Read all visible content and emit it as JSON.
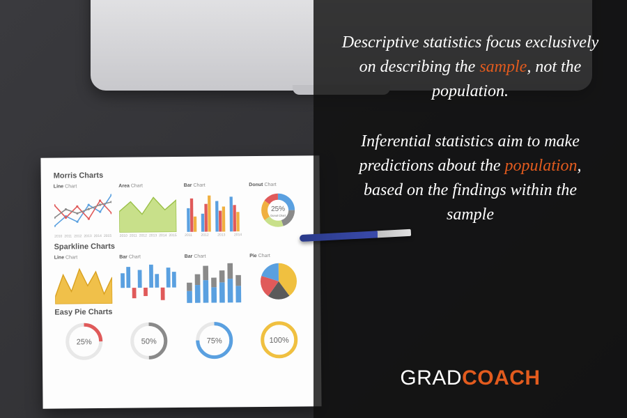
{
  "background_color": "#2a2a2d",
  "laptop": {
    "body_color": "#d8d8dc",
    "hinge_color": "#1a1a1c"
  },
  "pen": {
    "barrel_color": "#2a3a8a",
    "tip_color": "#d0d0d0"
  },
  "paper": {
    "section1_title": "Morris Charts",
    "section2_title": "Sparkline Charts",
    "section3_title": "Easy Pie Charts",
    "morris": {
      "line": {
        "label_strong": "Line",
        "label_rest": "Chart",
        "years": [
          "2010",
          "2011",
          "2012",
          "2013",
          "2014",
          "2015"
        ],
        "series": [
          {
            "color": "#5aa0e0",
            "points": [
              10,
              24,
              16,
              40,
              30,
              54
            ]
          },
          {
            "color": "#e05a5a",
            "points": [
              40,
              22,
              38,
              20,
              46,
              28
            ]
          },
          {
            "color": "#8a8a8a",
            "points": [
              22,
              34,
              28,
              34,
              40,
              44
            ]
          }
        ],
        "xlim": [
          0,
          5
        ],
        "ylim": [
          0,
          60
        ]
      },
      "area": {
        "label_strong": "Area",
        "label_rest": "Chart",
        "years": [
          "2010",
          "2011",
          "2012",
          "2013",
          "2014",
          "2015"
        ],
        "fill_color": "#c8e08a",
        "stroke_color": "#9ac048",
        "points": [
          30,
          44,
          26,
          50,
          32,
          46
        ],
        "xlim": [
          0,
          5
        ],
        "ylim": [
          0,
          60
        ]
      },
      "bar": {
        "label_strong": "Bar",
        "label_rest": "Chart",
        "years": [
          "2011",
          "2012",
          "2013",
          "2014"
        ],
        "colors": [
          "#5aa0e0",
          "#e05a5a",
          "#f0b040"
        ],
        "groups": [
          [
            34,
            48,
            22
          ],
          [
            26,
            40,
            52
          ],
          [
            44,
            30,
            36
          ],
          [
            50,
            38,
            28
          ]
        ],
        "ylim": [
          0,
          60
        ]
      },
      "donut": {
        "label_strong": "Donut",
        "label_rest": "Chart",
        "center_value": "25",
        "center_sub": "Donut Chart",
        "slices": [
          {
            "color": "#5aa0e0",
            "value": 25
          },
          {
            "color": "#8a8a8a",
            "value": 20
          },
          {
            "color": "#c8e08a",
            "value": 20
          },
          {
            "color": "#f0b040",
            "value": 20
          },
          {
            "color": "#e05a5a",
            "value": 15
          }
        ],
        "percent_suffix": "%"
      }
    },
    "sparkline": {
      "line": {
        "label_strong": "Line",
        "label_rest": "Chart",
        "fill_color": "#f0c04a",
        "stroke_color": "#d8a020",
        "points": [
          10,
          42,
          18,
          50,
          26,
          46,
          14,
          38
        ],
        "xlim": [
          0,
          7
        ],
        "ylim": [
          0,
          60
        ]
      },
      "bar": {
        "label_strong": "Bar",
        "label_rest": "Chart",
        "color_pos": "#5aa0e0",
        "color_neg": "#e05a5a",
        "values": [
          28,
          40,
          -20,
          34,
          -16,
          44,
          26,
          -24,
          38,
          30
        ],
        "ylim": [
          -30,
          50
        ]
      },
      "stacked": {
        "label_strong": "Bar",
        "label_rest": "Chart",
        "colors": [
          "#5aa0e0",
          "#8a8a8a"
        ],
        "stacks": [
          [
            20,
            14
          ],
          [
            30,
            18
          ],
          [
            38,
            24
          ],
          [
            26,
            16
          ],
          [
            34,
            20
          ],
          [
            40,
            26
          ],
          [
            28,
            18
          ]
        ],
        "ylim": [
          0,
          70
        ]
      },
      "pie": {
        "label_strong": "Pie",
        "label_rest": "Chart",
        "slices": [
          {
            "color": "#f0c040",
            "value": 40
          },
          {
            "color": "#5a5a5a",
            "value": 20
          },
          {
            "color": "#e05a5a",
            "value": 20
          },
          {
            "color": "#5aa0e0",
            "value": 20
          }
        ]
      }
    },
    "easypie": {
      "ring_bg": "#e8e8e8",
      "items": [
        {
          "value": 25,
          "color": "#e05a5a"
        },
        {
          "value": 50,
          "color": "#8a8a8a"
        },
        {
          "value": 75,
          "color": "#5aa0e0"
        },
        {
          "value": 100,
          "color": "#f0c040"
        }
      ],
      "percent_suffix": "%"
    }
  },
  "overlay": {
    "p1_a": "Descriptive statistics focus exclusively on describing the ",
    "p1_accent": "sample",
    "p1_b": ", not the population.",
    "p2_a": "Inferential statistics aim to make predictions about the ",
    "p2_accent": "population",
    "p2_b": ", based on the findings within the sample",
    "accent_color": "#e25b1e",
    "text_color": "#ffffff",
    "font_size_pt": 18
  },
  "logo": {
    "part1": "GRAD",
    "part2": "COACH",
    "color1": "#ffffff",
    "color2": "#e25b1e"
  }
}
